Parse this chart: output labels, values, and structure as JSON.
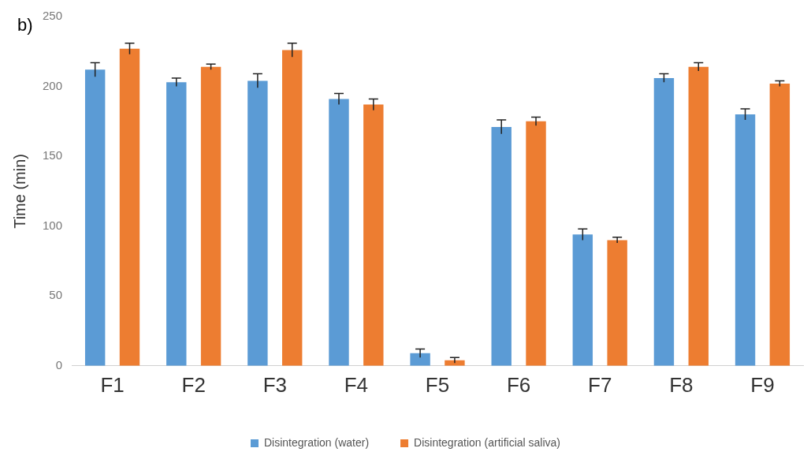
{
  "chart_data": {
    "type": "bar",
    "ylabel": "Time (min)",
    "annotations": [
      "b)"
    ],
    "categories": [
      "F1",
      "F2",
      "F3",
      "F4",
      "F5",
      "F6",
      "F7",
      "F8",
      "F9"
    ],
    "series": [
      {
        "name": "Disintegration (water)",
        "color": "#5b9bd5",
        "values": [
          212,
          203,
          204,
          191,
          9,
          171,
          94,
          206,
          180
        ],
        "errors": [
          5,
          3,
          5,
          4,
          3,
          5,
          4,
          3,
          4
        ]
      },
      {
        "name": "Disintegration (artificial saliva)",
        "color": "#ed7d31",
        "values": [
          227,
          214,
          226,
          187,
          4,
          175,
          90,
          214,
          202
        ],
        "errors": [
          4,
          2,
          5,
          4,
          2,
          3,
          2,
          3,
          2
        ]
      }
    ],
    "ylim": [
      0,
      250
    ],
    "yticks": [
      0,
      50,
      100,
      150,
      200,
      250
    ],
    "grid": false,
    "legend": "bottom"
  }
}
